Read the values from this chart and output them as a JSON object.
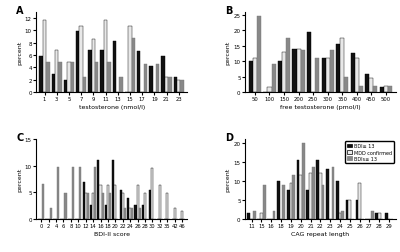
{
  "A": {
    "xlabel": "testosterone (nmol/l)",
    "ylabel": "percent",
    "ylim": [
      0,
      13
    ],
    "yticks": [
      0,
      2,
      4,
      6,
      8,
      10,
      12
    ],
    "categories": [
      1,
      3,
      5,
      7,
      9,
      11,
      13,
      15,
      17,
      19,
      21,
      23
    ],
    "black": [
      5.8,
      2.9,
      1.9,
      9.9,
      6.8,
      6.8,
      8.2,
      0.0,
      6.7,
      4.2,
      5.8,
      2.5
    ],
    "white": [
      11.6,
      6.8,
      4.8,
      10.6,
      8.5,
      11.6,
      0.0,
      10.6,
      0.0,
      0.0,
      2.5,
      1.9
    ],
    "gray": [
      4.8,
      4.8,
      4.8,
      2.4,
      4.8,
      4.8,
      2.4,
      8.7,
      4.5,
      4.5,
      2.5,
      2.0
    ]
  },
  "B": {
    "xlabel": "free testosterone (pmol/l)",
    "ylabel": "percent",
    "ylim": [
      0,
      26
    ],
    "yticks": [
      0,
      5,
      10,
      15,
      20,
      25
    ],
    "categories": [
      50,
      100,
      150,
      200,
      250,
      300,
      350,
      400,
      450,
      500
    ],
    "black": [
      10.0,
      0.0,
      10.0,
      14.0,
      19.5,
      11.0,
      15.5,
      12.5,
      6.0,
      1.5
    ],
    "white": [
      11.0,
      1.5,
      13.0,
      14.0,
      0.0,
      11.0,
      17.5,
      11.0,
      4.5,
      2.0
    ],
    "gray": [
      24.5,
      9.0,
      17.5,
      13.5,
      11.0,
      13.5,
      5.0,
      2.0,
      2.0,
      2.0
    ]
  },
  "C": {
    "xlabel": "BDI-II score",
    "ylabel": "percent",
    "ylim": [
      0,
      15
    ],
    "yticks": [
      0,
      5,
      10,
      15
    ],
    "categories": [
      0,
      2,
      4,
      6,
      8,
      10,
      12,
      14,
      16,
      18,
      20,
      22,
      24,
      26,
      28,
      30,
      32,
      35,
      42,
      46
    ],
    "black": [
      0.0,
      0.0,
      0.0,
      0.0,
      0.0,
      0.0,
      7.0,
      2.7,
      11.0,
      2.7,
      11.0,
      5.5,
      4.0,
      2.7,
      2.7,
      5.5,
      0.0,
      0.0,
      0.0,
      0.0
    ],
    "white": [
      0.0,
      0.0,
      0.0,
      0.0,
      0.0,
      0.0,
      4.8,
      4.8,
      6.3,
      6.3,
      6.3,
      4.8,
      2.0,
      6.3,
      4.8,
      9.5,
      6.3,
      4.8,
      2.0,
      1.5
    ],
    "gray": [
      6.5,
      2.0,
      9.7,
      4.8,
      9.7,
      9.7,
      4.8,
      9.7,
      4.8,
      4.8,
      0.0,
      2.0,
      2.0,
      2.0,
      0.0,
      0.0,
      0.0,
      0.0,
      0.0,
      0.0
    ]
  },
  "D": {
    "xlabel": "CAG repeat length",
    "ylabel": "percent",
    "ylim": [
      0,
      21
    ],
    "yticks": [
      0,
      5,
      10,
      15,
      20
    ],
    "categories": [
      11,
      15,
      16,
      18,
      19,
      20,
      21,
      22,
      23,
      24,
      25,
      26,
      27,
      28,
      29
    ],
    "black": [
      1.5,
      0.0,
      0.0,
      10.0,
      7.5,
      15.5,
      7.5,
      15.5,
      13.0,
      10.0,
      5.0,
      5.0,
      0.0,
      1.5,
      1.5
    ],
    "white": [
      0.0,
      1.5,
      0.0,
      0.0,
      9.5,
      11.5,
      12.0,
      12.0,
      0.0,
      1.5,
      5.0,
      9.5,
      0.0,
      1.5,
      0.0
    ],
    "gray": [
      2.0,
      9.0,
      2.0,
      9.0,
      11.5,
      20.0,
      13.5,
      9.0,
      13.5,
      2.0,
      0.0,
      0.0,
      2.0,
      0.0,
      0.0
    ]
  },
  "legend_labels": [
    "BDI≥ 13",
    "MDD confirmed",
    "BDIs≤ 13"
  ],
  "bar_colors": [
    "#111111",
    "#e8e8e8",
    "#888888"
  ],
  "bar_edgecolors": [
    "#000000",
    "#000000",
    "#777777"
  ]
}
